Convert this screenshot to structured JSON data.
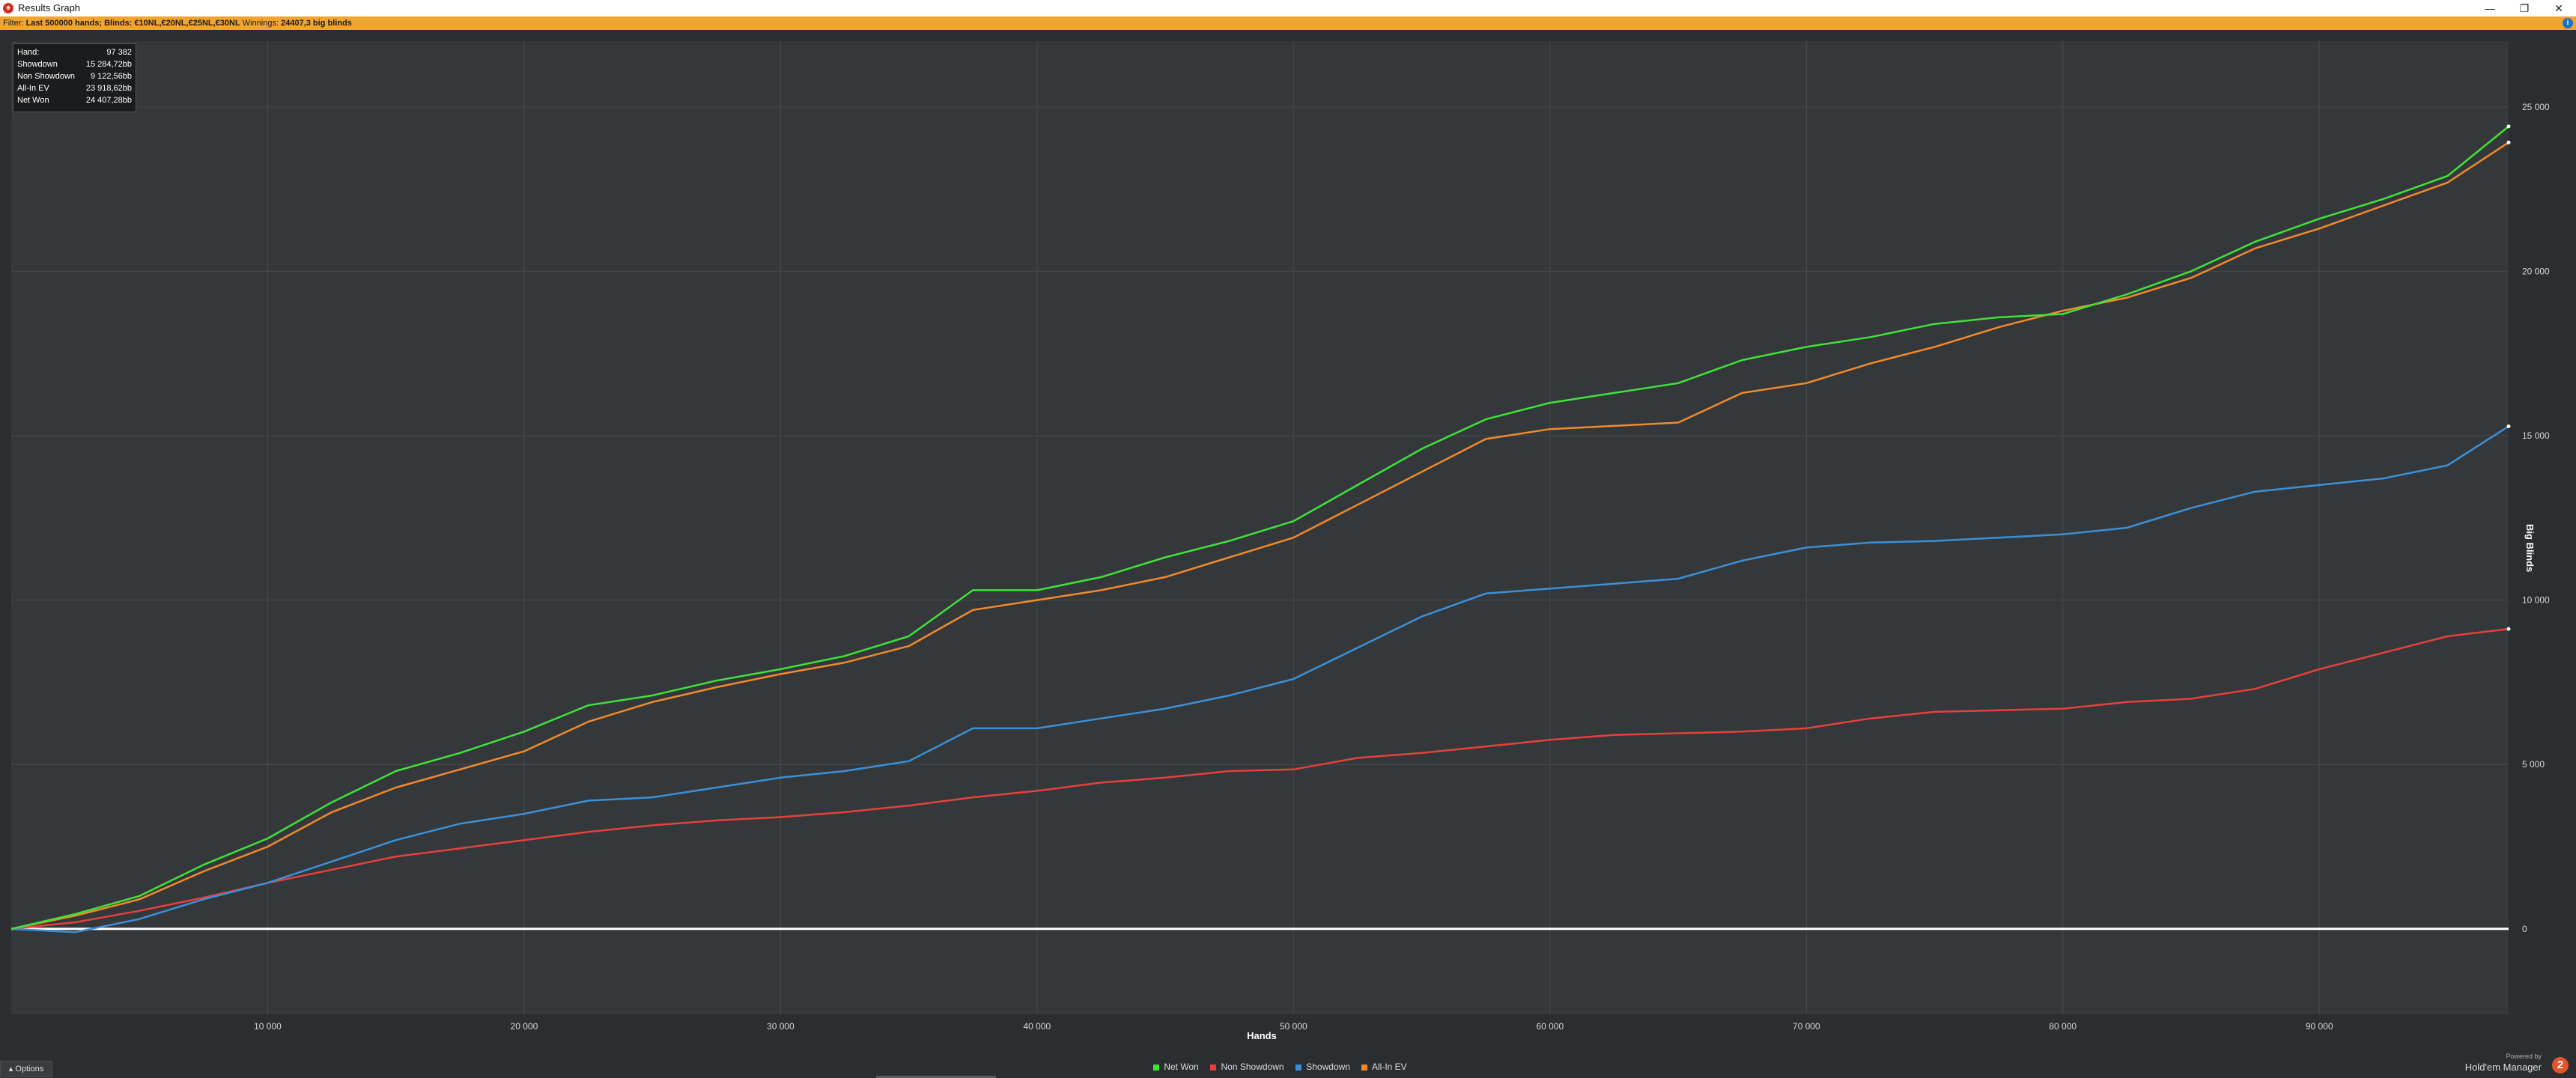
{
  "window": {
    "title": "Results Graph",
    "app_icon": "holdem-manager-icon",
    "controls": {
      "minimize": "—",
      "restore": "❐",
      "close": "✕"
    }
  },
  "filter": {
    "label": "Filter:",
    "value": "Last 500000 hands; Blinds: €10NL,€20NL,€25NL,€30NL",
    "winnings_label": "Winnings:",
    "winnings_value": "24407,3 big blinds"
  },
  "infobox": {
    "rows": [
      {
        "key": "Hand:",
        "value": "97 382"
      },
      {
        "key": "Showdown",
        "value": "15 284,72bb"
      },
      {
        "key": "Non Showdown",
        "value": "9 122,56bb"
      },
      {
        "key": "All-In EV",
        "value": "23 918,62bb"
      },
      {
        "key": "Net Won",
        "value": "24 407,28bb"
      }
    ]
  },
  "bottom": {
    "options_label": "Options",
    "powered_by": "Powered by",
    "brand": "Hold'em Manager",
    "brand_logo": "2"
  },
  "colors": {
    "net_won": "#3ee23a",
    "non_showdown": "#e5403c",
    "showdown": "#3a90d8",
    "all_in_ev": "#f08a2c",
    "zero_line": "#ffffff",
    "grid": "#464a4e"
  },
  "chart_data": {
    "type": "line",
    "xlabel": "Hands",
    "ylabel": "Big Blinds",
    "xlim": [
      0,
      97382
    ],
    "ylim": [
      -2600,
      27000
    ],
    "x_ticks": [
      {
        "value": 10000,
        "label": "10 000"
      },
      {
        "value": 20000,
        "label": "20 000"
      },
      {
        "value": 30000,
        "label": "30 000"
      },
      {
        "value": 40000,
        "label": "40 000"
      },
      {
        "value": 50000,
        "label": "50 000"
      },
      {
        "value": 60000,
        "label": "60 000"
      },
      {
        "value": 70000,
        "label": "70 000"
      },
      {
        "value": 80000,
        "label": "80 000"
      },
      {
        "value": 90000,
        "label": "90 000"
      }
    ],
    "y_ticks": [
      {
        "value": 0,
        "label": "0"
      },
      {
        "value": 5000,
        "label": "5 000"
      },
      {
        "value": 10000,
        "label": "10 000"
      },
      {
        "value": 15000,
        "label": "15 000"
      },
      {
        "value": 20000,
        "label": "20 000"
      },
      {
        "value": 25000,
        "label": "25 000"
      }
    ],
    "grid": true,
    "legend_position": "bottom",
    "x": [
      0,
      2500,
      5000,
      7500,
      10000,
      12500,
      15000,
      17500,
      20000,
      22500,
      25000,
      27500,
      30000,
      32500,
      35000,
      37500,
      40000,
      42500,
      45000,
      47500,
      50000,
      52500,
      55000,
      57500,
      60000,
      62500,
      65000,
      67500,
      70000,
      72500,
      75000,
      77500,
      80000,
      82500,
      85000,
      87500,
      90000,
      92500,
      95000,
      97382
    ],
    "series": [
      {
        "name": "Net Won",
        "color": "#3ee23a",
        "values": [
          0,
          450,
          1000,
          1950,
          2750,
          3850,
          4800,
          5350,
          6000,
          6800,
          7100,
          7550,
          7900,
          8300,
          8900,
          10300,
          10300,
          10700,
          11300,
          11800,
          12400,
          13500,
          14600,
          15500,
          16000,
          16300,
          16600,
          17300,
          17700,
          18000,
          18400,
          18600,
          18700,
          19300,
          20000,
          20900,
          21600,
          22200,
          22900,
          24407
        ]
      },
      {
        "name": "Non Showdown",
        "color": "#e5403c",
        "values": [
          0,
          200,
          550,
          950,
          1400,
          1800,
          2200,
          2450,
          2700,
          2950,
          3150,
          3300,
          3400,
          3550,
          3750,
          4000,
          4200,
          4450,
          4600,
          4800,
          4850,
          5200,
          5350,
          5550,
          5750,
          5900,
          5950,
          6000,
          6100,
          6400,
          6600,
          6650,
          6700,
          6900,
          7000,
          7300,
          7900,
          8400,
          8900,
          9123
        ]
      },
      {
        "name": "Showdown",
        "color": "#3a90d8",
        "values": [
          0,
          -100,
          300,
          900,
          1400,
          2050,
          2700,
          3200,
          3500,
          3900,
          4000,
          4300,
          4600,
          4800,
          5100,
          6100,
          6100,
          6400,
          6700,
          7100,
          7600,
          8550,
          9500,
          10200,
          10350,
          10500,
          10650,
          11200,
          11600,
          11750,
          11800,
          11900,
          12000,
          12200,
          12800,
          13300,
          13500,
          13700,
          14100,
          15285
        ]
      },
      {
        "name": "All-In EV",
        "color": "#f08a2c",
        "values": [
          0,
          400,
          900,
          1750,
          2500,
          3550,
          4300,
          4850,
          5400,
          6300,
          6900,
          7350,
          7750,
          8100,
          8600,
          9700,
          10000,
          10300,
          10700,
          11300,
          11900,
          12900,
          13900,
          14900,
          15200,
          15300,
          15400,
          16300,
          16600,
          17200,
          17700,
          18300,
          18800,
          19200,
          19800,
          20700,
          21300,
          22000,
          22700,
          23919
        ]
      }
    ]
  }
}
